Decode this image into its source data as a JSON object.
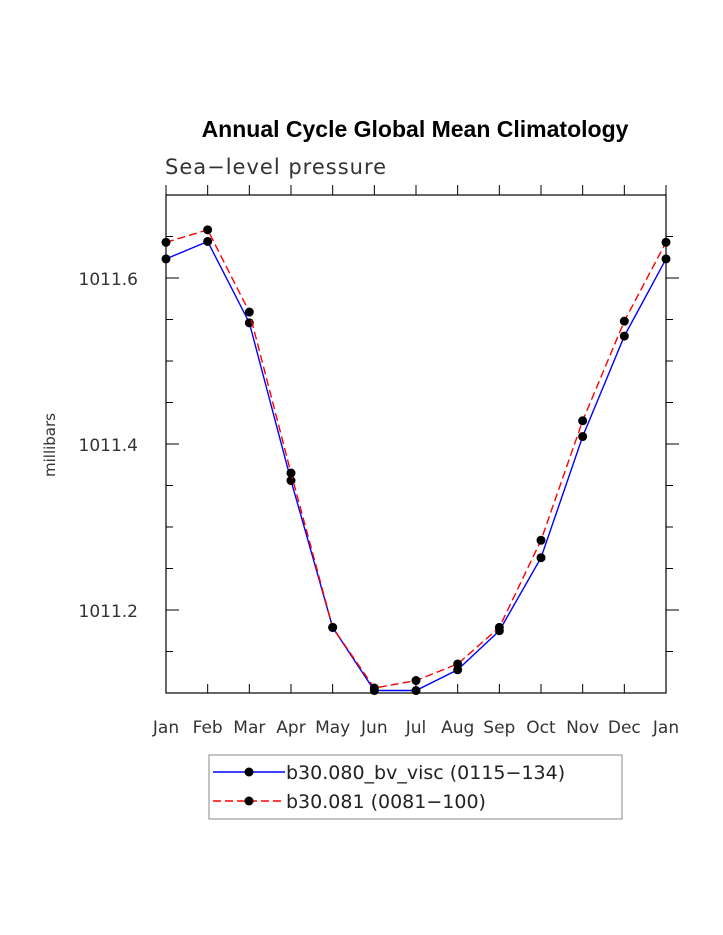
{
  "chart_data": {
    "type": "line",
    "title": "Annual Cycle Global Mean Climatology",
    "subtitle": "Sea−level pressure",
    "ylabel": "millibars",
    "xlabel": "",
    "categories": [
      "Jan",
      "Feb",
      "Mar",
      "Apr",
      "May",
      "Jun",
      "Jul",
      "Aug",
      "Sep",
      "Oct",
      "Nov",
      "Dec",
      "Jan"
    ],
    "ylim": [
      1011.1,
      1011.7
    ],
    "yticks": [
      1011.2,
      1011.4,
      1011.6
    ],
    "ytick_labels": [
      "1011.2",
      "1011.4",
      "1011.6"
    ],
    "series": [
      {
        "name": "b30.080_bv_visc (0115−134)",
        "color": "#0000ff",
        "dash": "solid",
        "values": [
          1011.623,
          1011.644,
          1011.546,
          1011.356,
          1011.179,
          1011.103,
          1011.103,
          1011.128,
          1011.175,
          1011.263,
          1011.409,
          1011.53,
          1011.623
        ]
      },
      {
        "name": "b30.081 (0081−100)",
        "color": "#ff0000",
        "dash": "dashed",
        "values": [
          1011.643,
          1011.658,
          1011.559,
          1011.365,
          1011.179,
          1011.106,
          1011.115,
          1011.135,
          1011.179,
          1011.284,
          1011.428,
          1011.548,
          1011.643
        ]
      }
    ],
    "legend_position": "bottom"
  }
}
